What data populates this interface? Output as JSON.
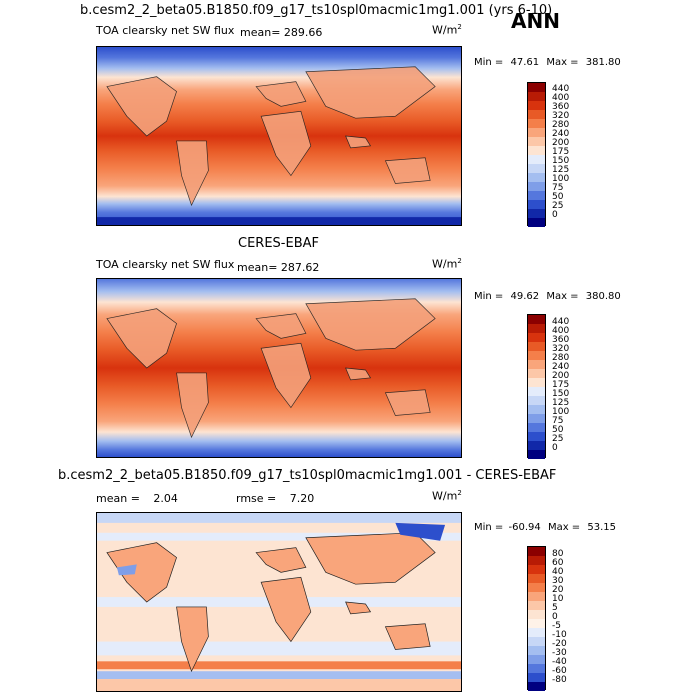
{
  "season": "ANN",
  "panels": [
    {
      "title": "b.cesm2_2_beta05.B1850.f09_g17_ts10spl0macmic1mg1.001 (yrs 6-10)",
      "variable": "TOA clearsky net SW flux",
      "mean_label": "mean=",
      "mean": "289.66",
      "units": "W/m",
      "units_exp": "2",
      "min_label": "Min =",
      "min": "47.61",
      "max_label": "Max =",
      "max": "381.80",
      "levels": [
        "440",
        "400",
        "360",
        "320",
        "280",
        "240",
        "200",
        "175",
        "150",
        "125",
        "100",
        "75",
        "50",
        "25",
        "0"
      ]
    },
    {
      "title": "CERES-EBAF",
      "variable": "TOA clearsky net SW flux",
      "mean_label": "mean=",
      "mean": "287.62",
      "units": "W/m",
      "units_exp": "2",
      "min_label": "Min =",
      "min": "49.62",
      "max_label": "Max =",
      "max": "380.80",
      "levels": [
        "440",
        "400",
        "360",
        "320",
        "280",
        "240",
        "200",
        "175",
        "150",
        "125",
        "100",
        "75",
        "50",
        "25",
        "0"
      ]
    },
    {
      "title": "b.cesm2_2_beta05.B1850.f09_g17_ts10spl0macmic1mg1.001 - CERES-EBAF",
      "mean_label": "mean =",
      "mean": "2.04",
      "rmse_label": "rmse =",
      "rmse": "7.20",
      "units": "W/m",
      "units_exp": "2",
      "min_label": "Min =",
      "min": "-60.94",
      "max_label": "Max =",
      "max": "53.15",
      "levels": [
        "80",
        "60",
        "40",
        "30",
        "20",
        "10",
        "5",
        "0",
        "-5",
        "-10",
        "-20",
        "-30",
        "-40",
        "-60",
        "-80"
      ]
    }
  ],
  "colors": {
    "abs_scale": [
      "#8b0000",
      "#b81b05",
      "#d8330e",
      "#e85a26",
      "#f47f4a",
      "#f9a57b",
      "#fcc7a8",
      "#fde4d2",
      "#e4ecfb",
      "#c7d7f6",
      "#a4bef0",
      "#7f9ee8",
      "#5577dd",
      "#2d4fcc",
      "#1128a8",
      "#000080"
    ],
    "diff_scale": [
      "#8b0000",
      "#b81b05",
      "#d8330e",
      "#e85a26",
      "#f47f4a",
      "#f9a57b",
      "#fcc7a8",
      "#fde4d2",
      "#fef2e8",
      "#e4ecfb",
      "#c7d7f6",
      "#a4bef0",
      "#7f9ee8",
      "#5577dd",
      "#2d4fcc",
      "#000080"
    ]
  }
}
